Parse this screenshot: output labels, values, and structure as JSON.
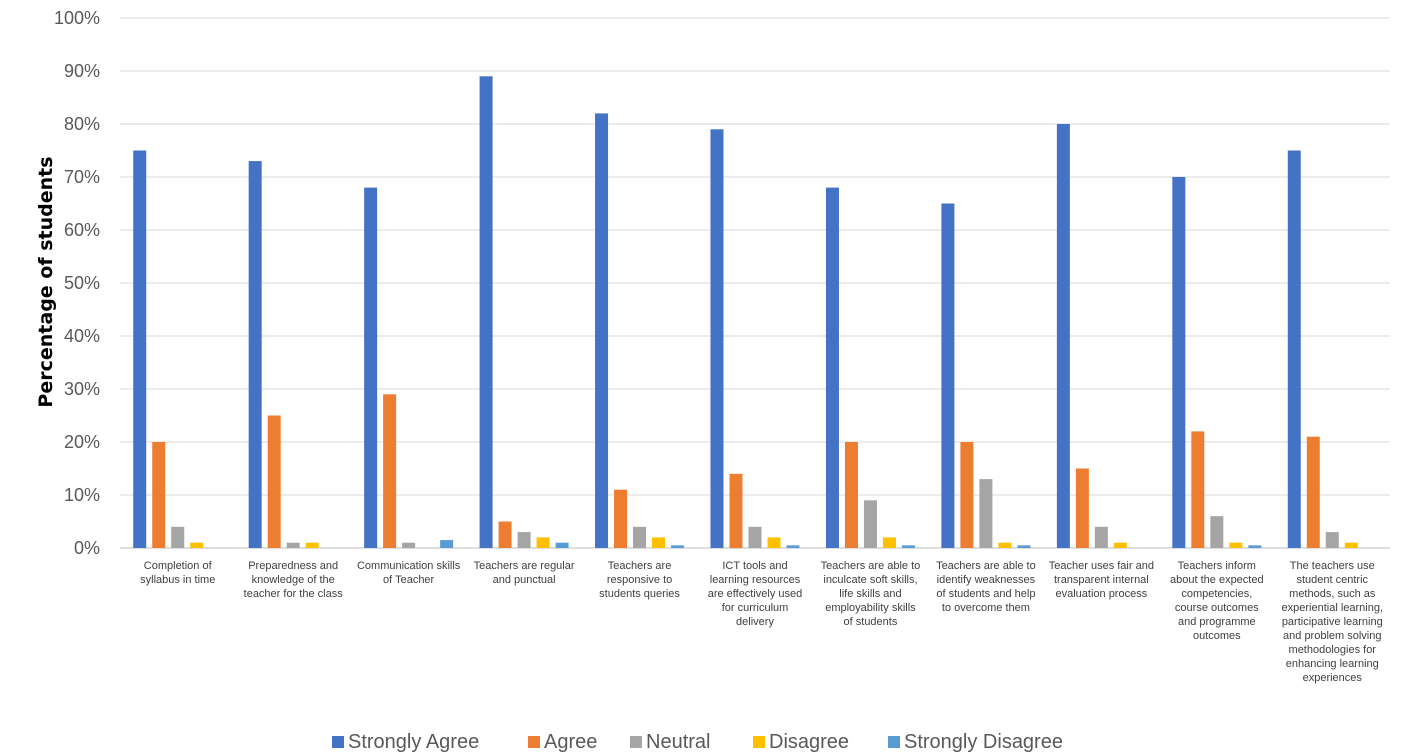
{
  "chart_data": {
    "type": "bar",
    "title": "",
    "xlabel": "",
    "ylabel": "Percentage of students",
    "ylim": [
      0,
      100
    ],
    "yticks": [
      "0%",
      "10%",
      "20%",
      "30%",
      "40%",
      "50%",
      "60%",
      "70%",
      "80%",
      "90%",
      "100%"
    ],
    "grid": true,
    "legend_position": "bottom",
    "categories": [
      [
        "Completion of",
        "syllabus in time"
      ],
      [
        "Preparedness and",
        "knowledge of the",
        "teacher for the class"
      ],
      [
        "Communication skills",
        "of Teacher"
      ],
      [
        "Teachers are regular",
        "and punctual"
      ],
      [
        "Teachers are",
        "responsive to",
        "students queries"
      ],
      [
        "ICT tools and",
        "learning resources",
        "are effectively used",
        "for curriculum",
        "delivery"
      ],
      [
        "Teachers are able to",
        "inculcate soft skills,",
        "life skills and",
        "employability skills",
        "of students"
      ],
      [
        "Teachers are able to",
        "identify weaknesses",
        "of students and help",
        "to overcome them"
      ],
      [
        "Teacher uses fair and",
        "transparent internal",
        "evaluation process"
      ],
      [
        "Teachers inform",
        "about the expected",
        "competencies,",
        "course outcomes",
        "and programme",
        "outcomes"
      ],
      [
        "The teachers use",
        "student centric",
        "methods, such as",
        "experiential learning,",
        "participative learning",
        "and problem solving",
        "methodologies for",
        "enhancing learning",
        "experiences"
      ]
    ],
    "series": [
      {
        "name": "Strongly Agree",
        "color": "#4472C4",
        "values": [
          75,
          73,
          68,
          89,
          82,
          79,
          68,
          65,
          80,
          70,
          75
        ]
      },
      {
        "name": "Agree",
        "color": "#ED7D31",
        "values": [
          20,
          25,
          29,
          5,
          11,
          14,
          20,
          20,
          15,
          22,
          21
        ]
      },
      {
        "name": "Neutral",
        "color": "#A5A5A5",
        "values": [
          4,
          1,
          1,
          3,
          4,
          4,
          9,
          13,
          4,
          6,
          3
        ]
      },
      {
        "name": "Disagree",
        "color": "#FFC000",
        "values": [
          1,
          1,
          0,
          2,
          2,
          2,
          2,
          1,
          1,
          1,
          1
        ]
      },
      {
        "name": "Strongly Disagree",
        "color": "#5B9BD5",
        "values": [
          0,
          0,
          1.5,
          1,
          0.5,
          0.5,
          0.5,
          0.5,
          0,
          0.5,
          0
        ]
      }
    ]
  }
}
